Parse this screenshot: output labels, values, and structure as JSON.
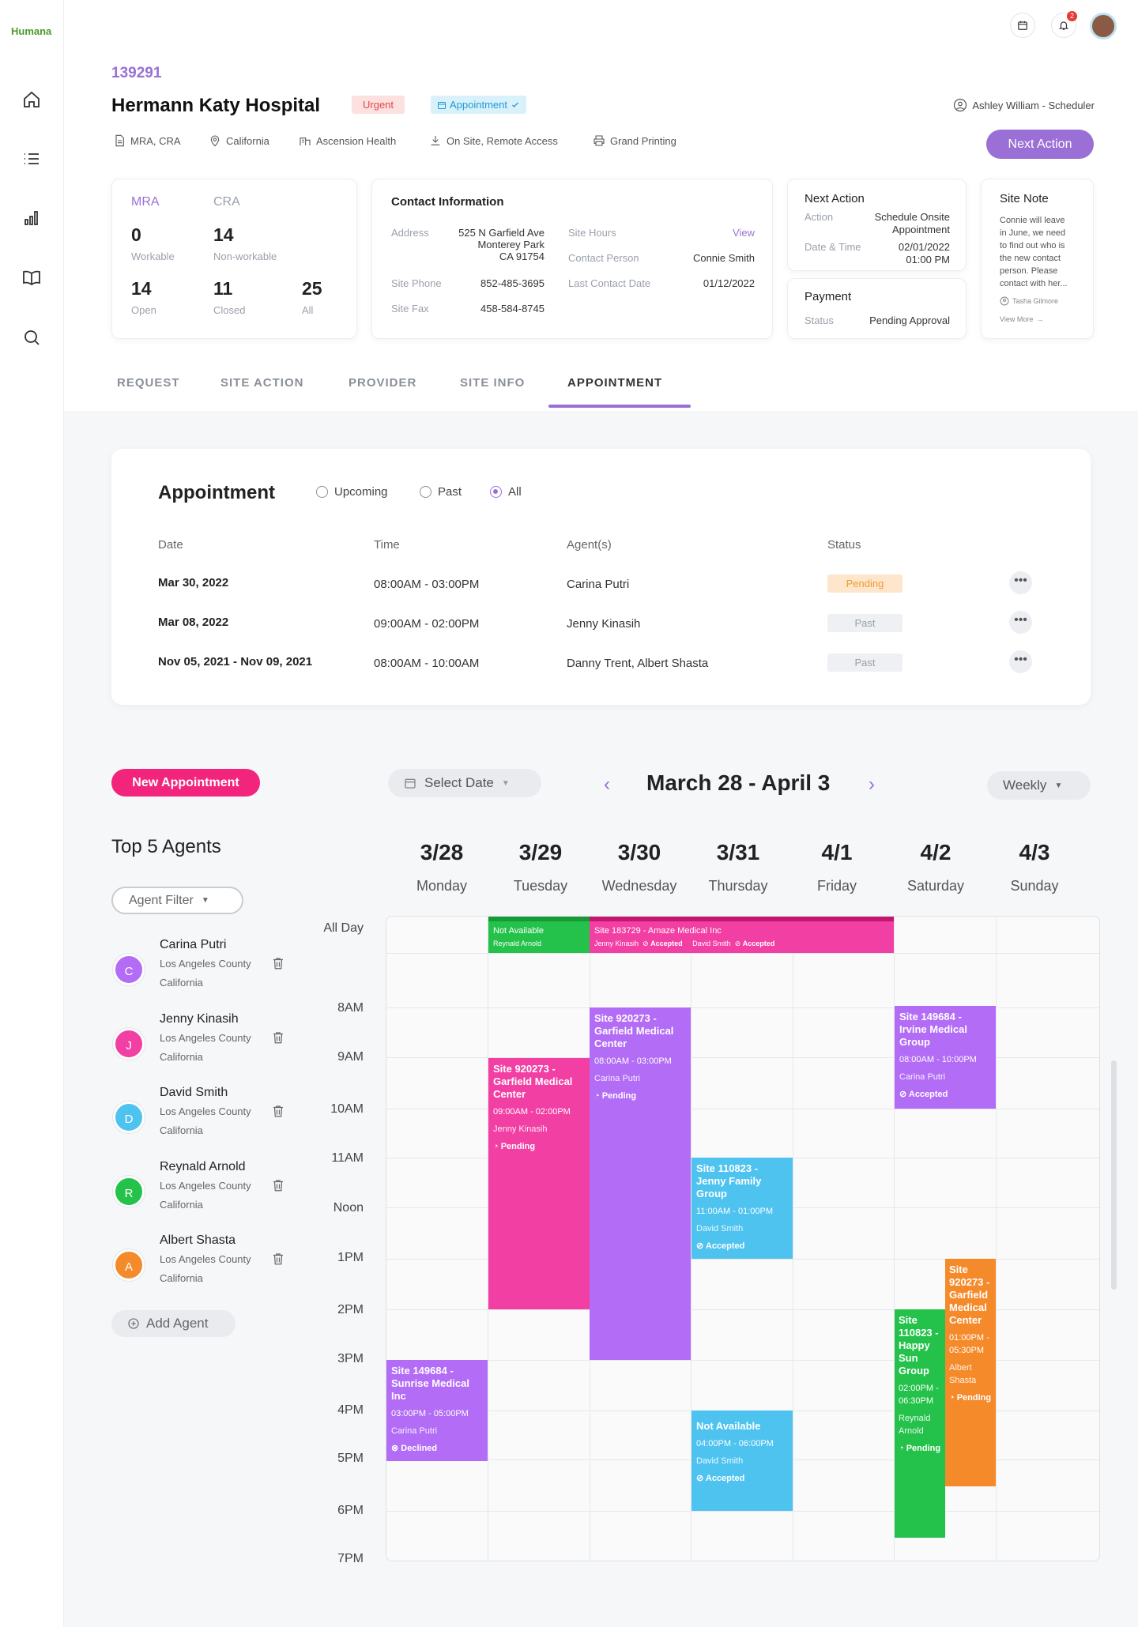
{
  "app": {
    "logo": "Humana"
  },
  "header": {
    "notif_count": "2",
    "site_id": "139291",
    "site_name": "Hermann Katy Hospital",
    "tag_urgent": "Urgent",
    "tag_appointment": "Appointment",
    "scheduler": "Ashley William - Scheduler",
    "meta": [
      "MRA, CRA",
      "California",
      "Ascension Health",
      "On Site, Remote Access",
      "Grand Printing"
    ],
    "next_action_button": "Next Action"
  },
  "stats": {
    "mra": "MRA",
    "cra": "CRA",
    "workable_val": "0",
    "workable": "Workable",
    "nonworkable_val": "14",
    "nonworkable": "Non-workable",
    "open_val": "14",
    "open": "Open",
    "closed_val": "11",
    "closed": "Closed",
    "all_val": "25",
    "all": "All"
  },
  "contact": {
    "title": "Contact Information",
    "address_lbl": "Address",
    "address_1": "525 N Garfield Ave",
    "address_2": "Monterey Park",
    "address_3": "CA 91754",
    "phone_lbl": "Site Phone",
    "phone": "852-485-3695",
    "fax_lbl": "Site Fax",
    "fax": "458-584-8745",
    "hours_lbl": "Site Hours",
    "hours_link": "View",
    "person_lbl": "Contact Person",
    "person": "Connie Smith",
    "last_lbl": "Last Contact Date",
    "last": "01/12/2022"
  },
  "next_action": {
    "title": "Next Action",
    "action_lbl": "Action",
    "action_1": "Schedule Onsite",
    "action_2": "Appointment",
    "dt_lbl": "Date & Time",
    "date": "02/01/2022",
    "time": "01:00 PM"
  },
  "payment": {
    "title": "Payment",
    "status_lbl": "Status",
    "status": "Pending Approval"
  },
  "site_note": {
    "title": "Site Note",
    "lines": [
      "Connie will leave",
      "in June, we need",
      "to find out who is",
      "the new contact",
      "person. Please",
      "contact with her..."
    ],
    "author": "Tasha Gilmore",
    "more": "View More"
  },
  "tabs": [
    "REQUEST",
    "SITE ACTION",
    "PROVIDER",
    "SITE INFO",
    "APPOINTMENT"
  ],
  "appointment": {
    "title": "Appointment",
    "filters": [
      "Upcoming",
      "Past",
      "All"
    ],
    "columns": [
      "Date",
      "Time",
      "Agent(s)",
      "Status"
    ],
    "rows": [
      {
        "date": "Mar 30, 2022",
        "time": "08:00AM - 03:00PM",
        "agents": "Carina Putri",
        "status": "Pending"
      },
      {
        "date": "Mar 08, 2022",
        "time": "09:00AM - 02:00PM",
        "agents": "Jenny Kinasih",
        "status": "Past"
      },
      {
        "date": "Nov 05, 2021 - Nov 09, 2021",
        "time": "08:00AM - 10:00AM",
        "agents": "Danny Trent, Albert Shasta",
        "status": "Past"
      }
    ],
    "more": "•••"
  },
  "calendar": {
    "new_btn": "New Appointment",
    "select_date": "Select Date",
    "range": "March 28 - April 3",
    "view": "Weekly",
    "top5": "Top 5 Agents",
    "filter": "Agent Filter",
    "add_agent": "Add Agent",
    "days": [
      {
        "d": "3/28",
        "w": "Monday"
      },
      {
        "d": "3/29",
        "w": "Tuesday"
      },
      {
        "d": "3/30",
        "w": "Wednesday"
      },
      {
        "d": "3/31",
        "w": "Thursday"
      },
      {
        "d": "4/1",
        "w": "Friday"
      },
      {
        "d": "4/2",
        "w": "Saturday"
      },
      {
        "d": "4/3",
        "w": "Sunday"
      }
    ],
    "hours": [
      "All Day",
      "8AM",
      "9AM",
      "10AM",
      "11AM",
      "Noon",
      "1PM",
      "2PM",
      "3PM",
      "4PM",
      "5PM",
      "6PM",
      "7PM"
    ],
    "agents": [
      {
        "initial": "C",
        "name": "Carina Putri",
        "county": "Los Angeles County",
        "state": "California",
        "color": "#b36cf5"
      },
      {
        "initial": "J",
        "name": "Jenny Kinasih",
        "county": "Los Angeles County",
        "state": "California",
        "color": "#f23fa3"
      },
      {
        "initial": "D",
        "name": "David Smith",
        "county": "Los Angeles County",
        "state": "California",
        "color": "#4ec3f0"
      },
      {
        "initial": "R",
        "name": "Reynald Arnold",
        "county": "Los Angeles County",
        "state": "California",
        "color": "#24c24a"
      },
      {
        "initial": "A",
        "name": "Albert Shasta",
        "county": "Los Angeles County",
        "state": "California",
        "color": "#f58a2b"
      }
    ],
    "allday": {
      "na_title": "Not Available",
      "na_agent": "Reynald Arnold",
      "site_title": "Site 183729 - Amaze Medical Inc",
      "site_agent1": "Jenny Kinasih",
      "site_status1": "Accepted",
      "site_agent2": "David Smith",
      "site_status2": "Accepted"
    },
    "events": [
      {
        "id": "e1",
        "title": "Site 920273  - Garfield Medical Center",
        "time": "09:00AM - 02:00PM",
        "agent": "Jenny Kinasih",
        "status": "Pending"
      },
      {
        "id": "e2",
        "title": "Site 920273  - Garfield Medical Center",
        "time": "08:00AM - 03:00PM",
        "agent": "Carina Putri",
        "status": "Pending"
      },
      {
        "id": "e3",
        "title": "Site 110823 - Jenny Family Group",
        "time": "11:00AM - 01:00PM",
        "agent": "David Smith",
        "status": "Accepted"
      },
      {
        "id": "e4",
        "title": "Site 149684 - Irvine Medical Group",
        "time": "08:00AM - 10:00PM",
        "agent": "Carina Putri",
        "status": "Accepted"
      },
      {
        "id": "e5",
        "title": "Site 149684 - Sunrise Medical Inc",
        "time": "03:00PM - 05:00PM",
        "agent": "Carina Putri",
        "status": "Declined"
      },
      {
        "id": "e6",
        "title": "Not Available",
        "time": "04:00PM - 06:00PM",
        "agent": "David Smith",
        "status": "Accepted"
      },
      {
        "id": "e7",
        "title": "Site 110823 - Happy Sun Group",
        "time": "02:00PM - 06:30PM",
        "agent": "Reynald Arnold",
        "status": "Pending"
      },
      {
        "id": "e8",
        "title": "Site 920273 - Garfield Medical Center",
        "time": "01:00PM - 05:30PM",
        "agent": "Albert Shasta",
        "status": "Pending"
      }
    ]
  }
}
